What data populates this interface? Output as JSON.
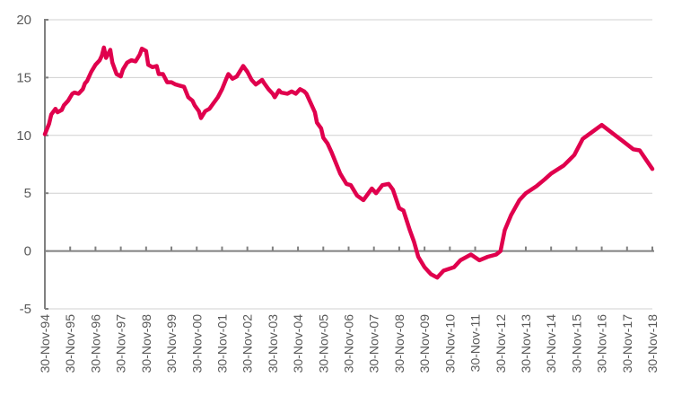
{
  "chart_data": {
    "type": "line",
    "title": "",
    "xlabel": "",
    "ylabel": "",
    "ylim": [
      -5,
      20
    ],
    "yticks": [
      "-5",
      "0",
      "5",
      "10",
      "15",
      "20"
    ],
    "xlim": [
      "1994-11",
      "2018-11"
    ],
    "xtick_labels": [
      "30-Nov-94",
      "30-Nov-95",
      "30-Nov-96",
      "30-Nov-97",
      "30-Nov-98",
      "30-Nov-99",
      "30-Nov-00",
      "30-Nov-01",
      "30-Nov-02",
      "30-Nov-03",
      "30-Nov-04",
      "30-Nov-05",
      "30-Nov-06",
      "30-Nov-07",
      "30-Nov-08",
      "30-Nov-09",
      "30-Nov-10",
      "30-Nov-11",
      "30-Nov-12",
      "30-Nov-13",
      "30-Nov-14",
      "30-Nov-15",
      "30-Nov-16",
      "30-Nov-17",
      "30-Nov-18"
    ],
    "grid": "horizontal",
    "legend": "none",
    "colors": {
      "line": "#E0004D",
      "axis": "#808080",
      "grid": "#D0D0D0"
    },
    "series": [
      {
        "x": [
          "1994-11",
          "1995-01",
          "1995-02",
          "1995-04",
          "1995-05",
          "1995-07",
          "1995-08",
          "1995-10",
          "1995-12",
          "1996-01",
          "1996-03",
          "1996-05",
          "1996-06",
          "1996-07",
          "1996-09",
          "1996-11",
          "1997-01",
          "1997-02",
          "1997-03",
          "1997-04",
          "1997-06",
          "1997-07",
          "1997-09",
          "1997-11",
          "1997-12",
          "1998-02",
          "1998-04",
          "1998-06",
          "1998-08",
          "1998-09",
          "1998-11",
          "1998-12",
          "1999-02",
          "1999-04",
          "1999-05",
          "1999-07",
          "1999-09",
          "1999-11",
          "2000-01",
          "2000-03",
          "2000-05",
          "2000-07",
          "2000-09",
          "2000-10",
          "2000-12",
          "2001-01",
          "2001-03",
          "2001-05",
          "2001-07",
          "2001-09",
          "2001-11",
          "2002-01",
          "2002-02",
          "2002-04",
          "2002-06",
          "2002-08",
          "2002-09",
          "2002-11",
          "2003-01",
          "2003-03",
          "2003-06",
          "2003-07",
          "2003-09",
          "2003-11",
          "2003-12",
          "2004-02",
          "2004-03",
          "2004-06",
          "2004-08",
          "2004-10",
          "2004-12",
          "2005-02",
          "2005-03",
          "2005-05",
          "2005-07",
          "2005-08",
          "2005-10",
          "2005-11",
          "2006-01",
          "2006-03",
          "2006-07",
          "2006-10",
          "2006-12",
          "2007-03",
          "2007-06",
          "2007-10",
          "2007-12",
          "2008-03",
          "2008-06",
          "2008-08",
          "2008-11",
          "2009-01",
          "2009-04",
          "2009-06",
          "2009-08",
          "2009-11",
          "2010-02",
          "2010-05",
          "2010-08",
          "2011-01",
          "2011-04",
          "2011-09",
          "2012-01",
          "2012-05",
          "2012-09",
          "2012-11",
          "2013-01",
          "2013-04",
          "2013-08",
          "2013-11",
          "2014-04",
          "2014-08",
          "2014-11",
          "2015-05",
          "2015-10",
          "2016-02",
          "2016-05",
          "2016-11",
          "2017-04",
          "2017-09",
          "2018-02",
          "2018-05",
          "2018-08",
          "2018-11"
        ],
        "values": [
          10.1,
          11.0,
          11.8,
          12.3,
          12.0,
          12.2,
          12.6,
          13.0,
          13.6,
          13.7,
          13.6,
          14.0,
          14.5,
          14.7,
          15.5,
          16.1,
          16.5,
          16.9,
          17.6,
          16.7,
          17.4,
          16.3,
          15.3,
          15.1,
          15.7,
          16.3,
          16.5,
          16.4,
          17.0,
          17.5,
          17.3,
          16.1,
          15.9,
          16.0,
          15.3,
          15.3,
          14.6,
          14.6,
          14.4,
          14.3,
          14.2,
          13.3,
          13.0,
          12.6,
          12.1,
          11.5,
          12.1,
          12.3,
          12.8,
          13.3,
          14.0,
          14.9,
          15.3,
          14.9,
          15.1,
          15.7,
          16.0,
          15.5,
          14.8,
          14.4,
          14.8,
          14.5,
          14.0,
          13.6,
          13.3,
          13.9,
          13.7,
          13.6,
          13.8,
          13.6,
          14.0,
          13.8,
          13.6,
          12.8,
          12.0,
          11.1,
          10.6,
          9.8,
          9.3,
          8.5,
          6.7,
          5.8,
          5.7,
          4.8,
          4.4,
          5.4,
          5.0,
          5.7,
          5.8,
          5.3,
          3.7,
          3.5,
          1.8,
          0.8,
          -0.5,
          -1.4,
          -2.0,
          -2.3,
          -1.7,
          -1.4,
          -0.8,
          -0.3,
          -0.8,
          -0.5,
          -0.3,
          0.0,
          1.8,
          3.1,
          4.4,
          5.0,
          5.6,
          6.2,
          6.7,
          7.4,
          8.3,
          9.7,
          10.1,
          10.9,
          10.2,
          9.5,
          8.8,
          8.7,
          7.9,
          7.1
        ]
      }
    ]
  }
}
